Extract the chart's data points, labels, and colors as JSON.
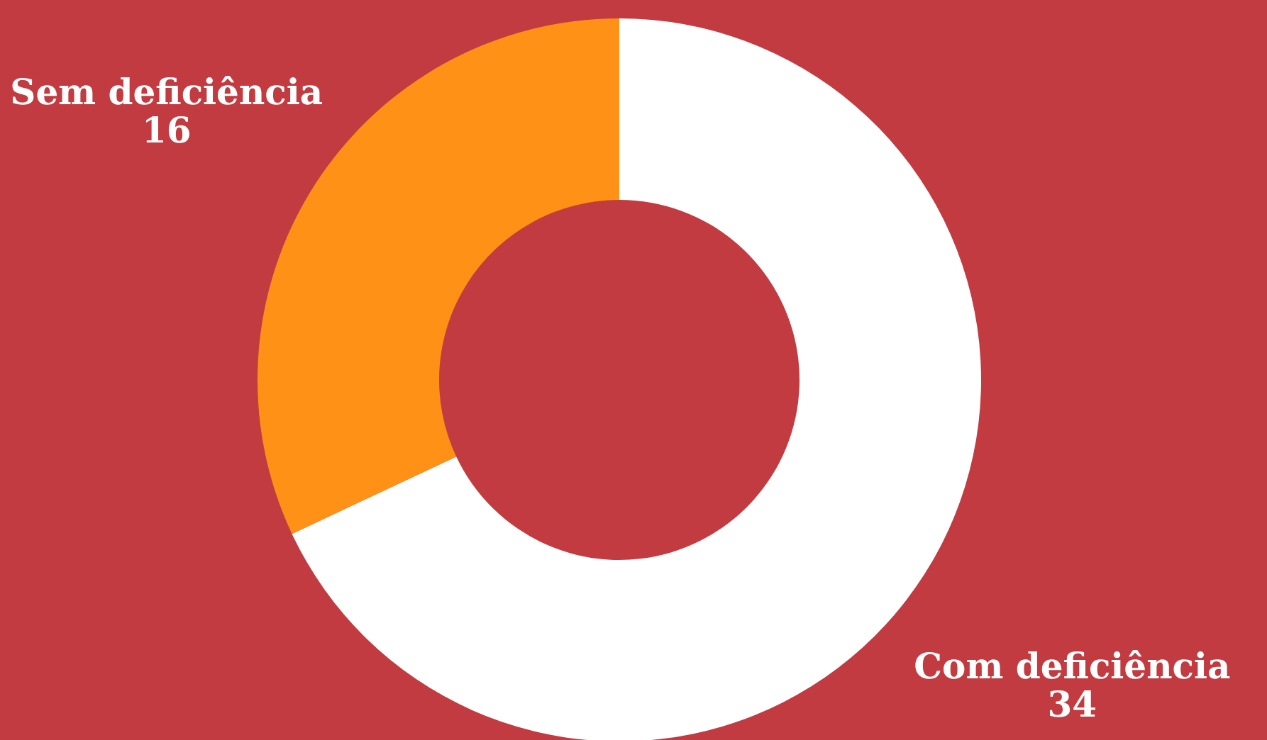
{
  "chart_data": {
    "type": "donut",
    "categories": [
      "Com deficiência",
      "Sem deficiência"
    ],
    "values": [
      34,
      16
    ],
    "colors": [
      "#ffffff",
      "#fe9116"
    ],
    "data_labels": true
  }
}
